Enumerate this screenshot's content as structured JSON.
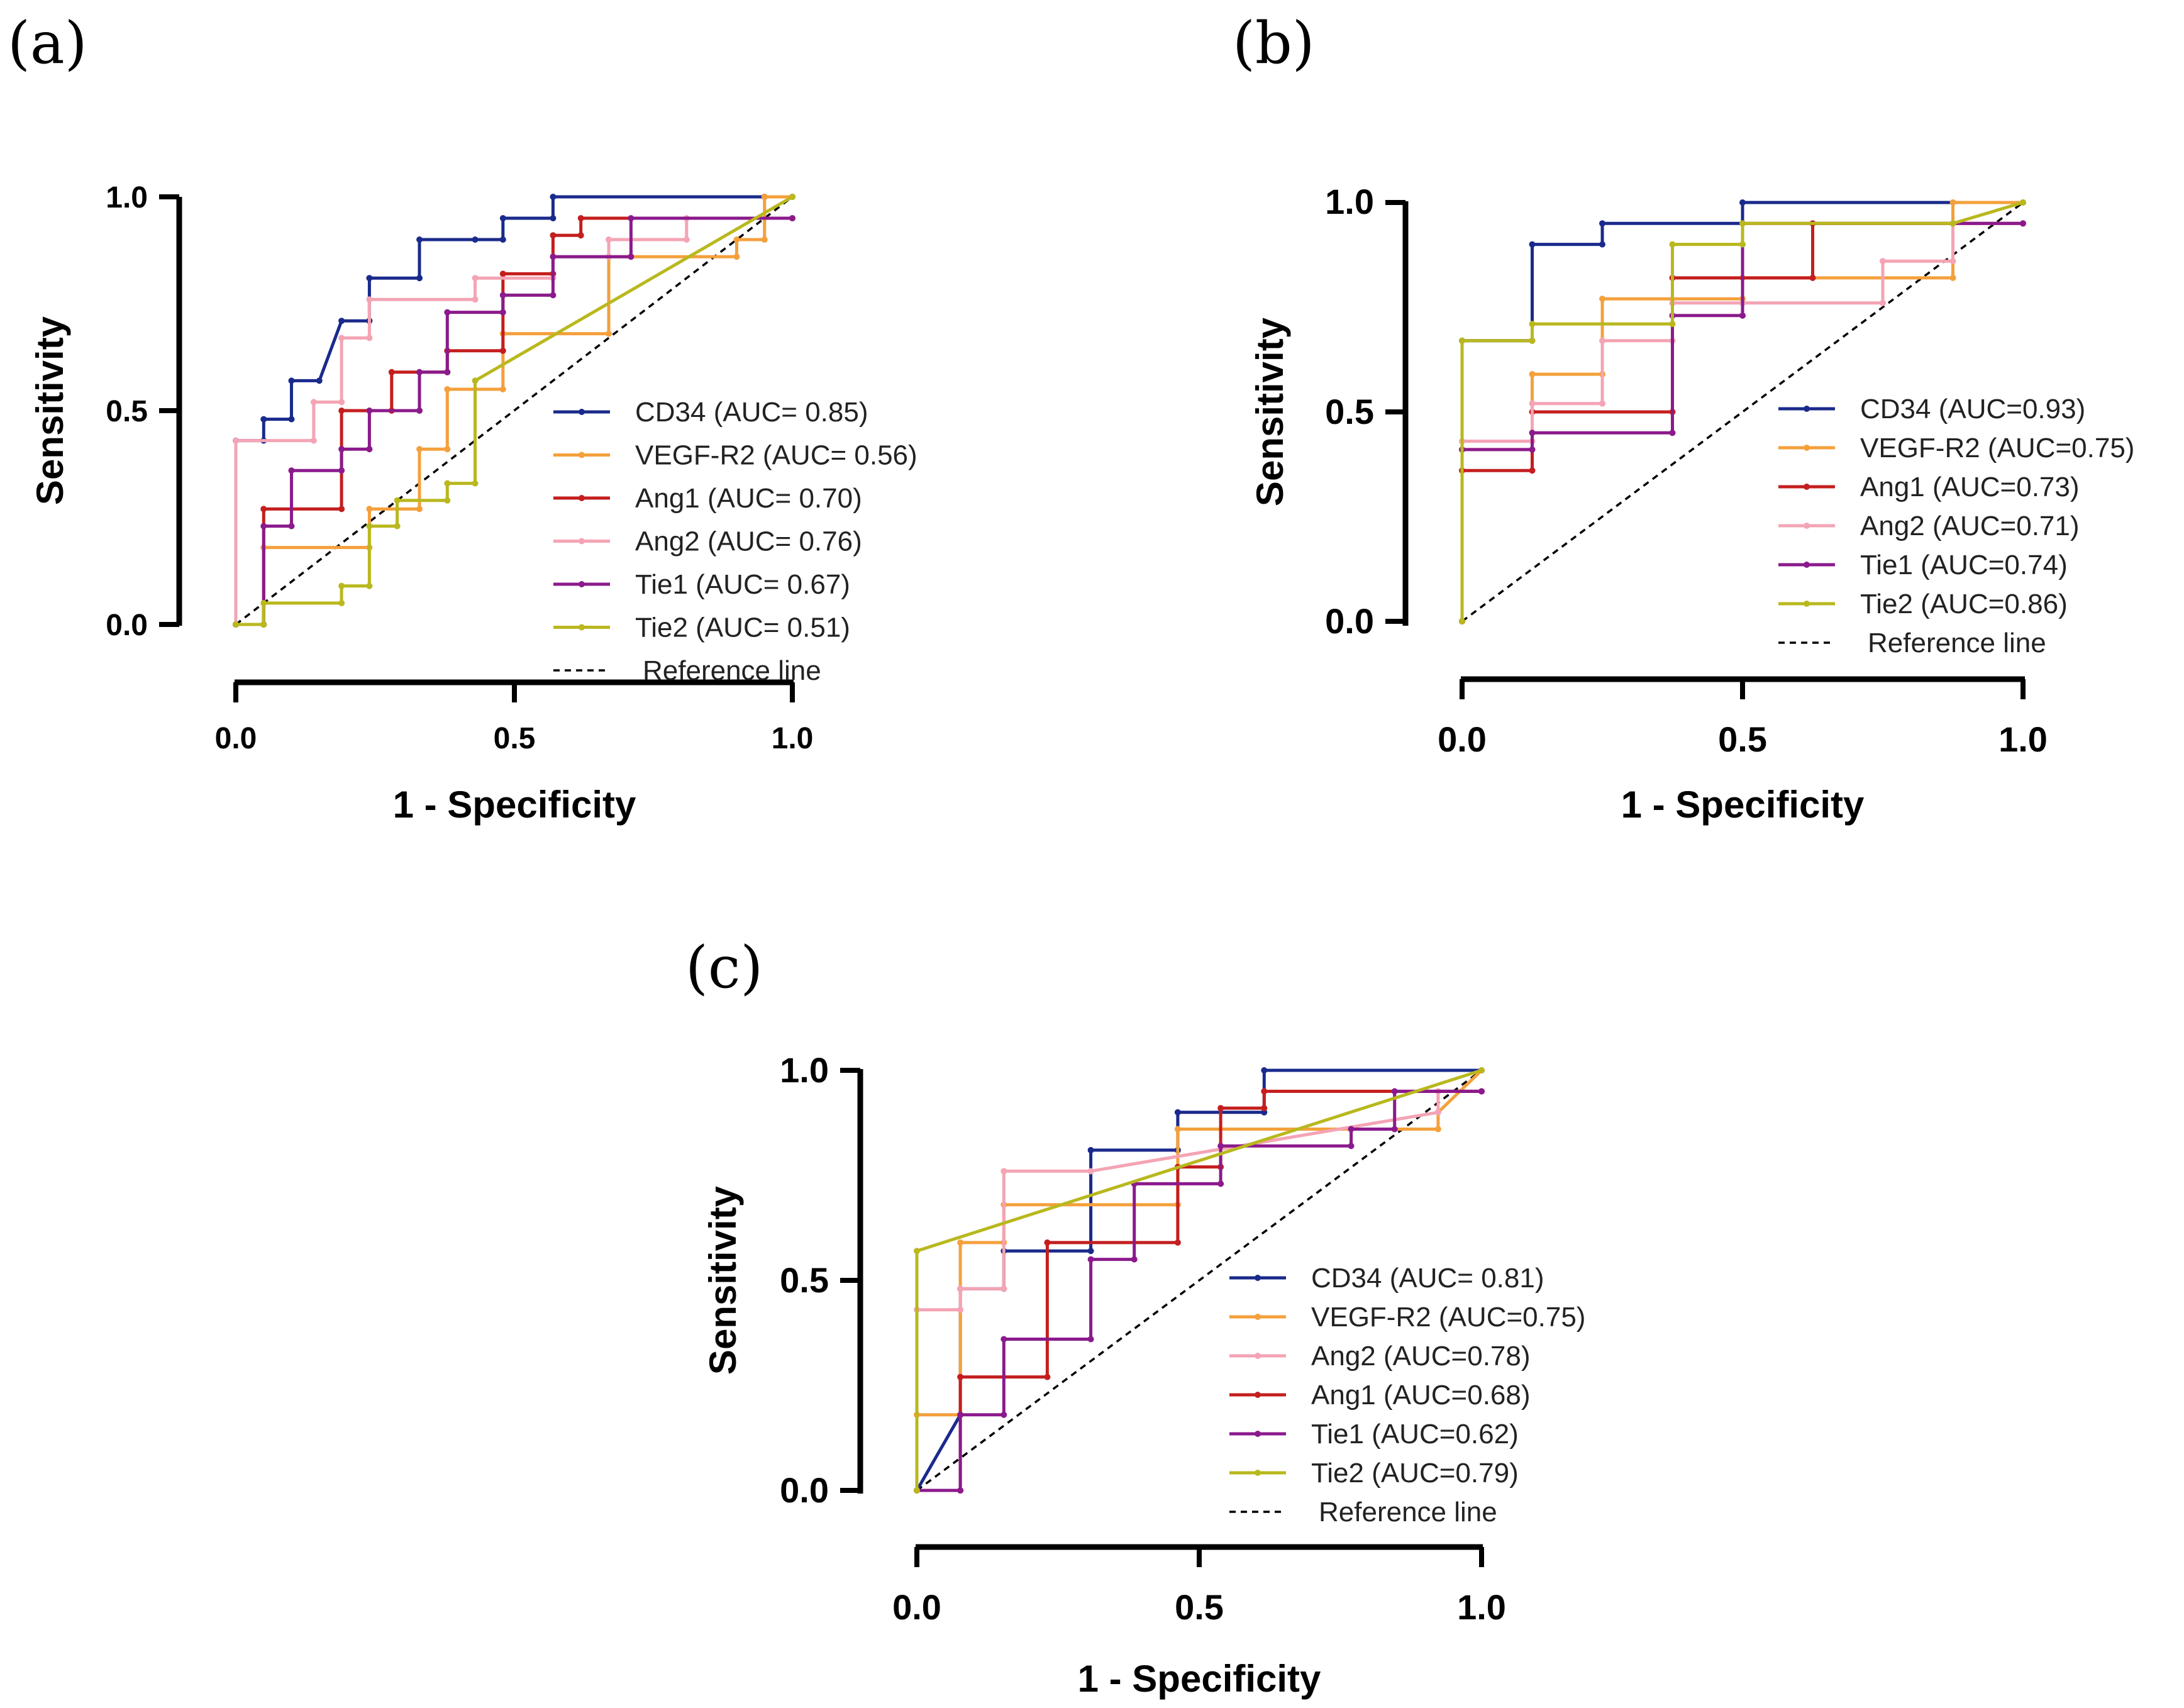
{
  "chart_data": [
    {
      "type": "line",
      "panel_label": "(a)",
      "xlabel": "1 - Specificity",
      "ylabel": "Sensitivity",
      "xlim": [
        0,
        1
      ],
      "ylim": [
        0,
        1
      ],
      "xticks": [
        "0.0",
        "0.5",
        "1.0"
      ],
      "yticks": [
        "0.0",
        "0.5",
        "1.0"
      ],
      "legend_position": "lower-right",
      "reference_label": "Reference line",
      "series": [
        {
          "name": "CD34 (AUC= 0.85)",
          "color": "#1a2a8c",
          "x": [
            0,
            0,
            0.05,
            0.05,
            0.1,
            0.1,
            0.15,
            0.19,
            0.24,
            0.24,
            0.33,
            0.33,
            0.43,
            0.48,
            0.48,
            0.57,
            0.57,
            0.95,
            0.95,
            1
          ],
          "y": [
            0,
            0.43,
            0.43,
            0.48,
            0.48,
            0.57,
            0.57,
            0.71,
            0.71,
            0.81,
            0.81,
            0.9,
            0.9,
            0.9,
            0.95,
            0.95,
            1,
            1,
            1,
            1
          ]
        },
        {
          "name": "VEGF-R2 (AUC= 0.56)",
          "color": "#f4a03c",
          "x": [
            0,
            0.05,
            0.05,
            0.24,
            0.24,
            0.33,
            0.33,
            0.38,
            0.38,
            0.48,
            0.48,
            0.67,
            0.67,
            0.9,
            0.9,
            0.95,
            0.95,
            1
          ],
          "y": [
            0,
            0,
            0.18,
            0.18,
            0.27,
            0.27,
            0.41,
            0.41,
            0.55,
            0.55,
            0.68,
            0.68,
            0.86,
            0.86,
            0.9,
            0.9,
            1,
            1
          ]
        },
        {
          "name": "Ang1  (AUC= 0.70)",
          "color": "#c41e1e",
          "x": [
            0,
            0.05,
            0.05,
            0.19,
            0.19,
            0.28,
            0.28,
            0.38,
            0.38,
            0.48,
            0.48,
            0.57,
            0.57,
            0.62,
            0.62,
            1
          ],
          "y": [
            0,
            0,
            0.27,
            0.27,
            0.5,
            0.5,
            0.59,
            0.59,
            0.64,
            0.64,
            0.82,
            0.82,
            0.91,
            0.91,
            0.95,
            0.95
          ]
        },
        {
          "name": "Ang2 (AUC= 0.76)",
          "color": "#f4a4b4",
          "x": [
            0,
            0,
            0.14,
            0.14,
            0.19,
            0.19,
            0.24,
            0.24,
            0.43,
            0.43,
            0.57,
            0.57,
            0.67,
            0.67,
            0.81,
            0.81,
            1
          ],
          "y": [
            0,
            0.43,
            0.43,
            0.52,
            0.52,
            0.67,
            0.67,
            0.76,
            0.76,
            0.81,
            0.81,
            0.86,
            0.86,
            0.9,
            0.9,
            0.95,
            0.95
          ]
        },
        {
          "name": "Tie1 (AUC= 0.67)",
          "color": "#8b1a8c",
          "x": [
            0,
            0.05,
            0.05,
            0.1,
            0.1,
            0.19,
            0.19,
            0.24,
            0.24,
            0.33,
            0.33,
            0.38,
            0.38,
            0.48,
            0.48,
            0.57,
            0.57,
            0.71,
            0.71,
            1
          ],
          "y": [
            0,
            0,
            0.23,
            0.23,
            0.36,
            0.36,
            0.41,
            0.41,
            0.5,
            0.5,
            0.59,
            0.59,
            0.73,
            0.73,
            0.77,
            0.77,
            0.86,
            0.86,
            0.95,
            0.95
          ]
        },
        {
          "name": "Tie2 (AUC= 0.51)",
          "color": "#b9b81e",
          "x": [
            0,
            0.05,
            0.05,
            0.19,
            0.19,
            0.24,
            0.24,
            0.29,
            0.29,
            0.38,
            0.38,
            0.43,
            0.43,
            1
          ],
          "y": [
            0,
            0,
            0.05,
            0.05,
            0.09,
            0.09,
            0.23,
            0.23,
            0.29,
            0.29,
            0.33,
            0.33,
            0.57,
            1
          ]
        }
      ]
    },
    {
      "type": "line",
      "panel_label": "(b)",
      "xlabel": "1 - Specificity",
      "ylabel": "Sensitivity",
      "xlim": [
        0,
        1
      ],
      "ylim": [
        0,
        1
      ],
      "xticks": [
        "0.0",
        "0.5",
        "1.0"
      ],
      "yticks": [
        "0.0",
        "0.5",
        "1.0"
      ],
      "legend_position": "lower-right",
      "reference_label": "Reference line",
      "series": [
        {
          "name": "CD34 (AUC=0.93)",
          "color": "#1a2a8c",
          "x": [
            0,
            0,
            0.125,
            0.125,
            0.25,
            0.25,
            0.5,
            0.5,
            1
          ],
          "y": [
            0,
            0.67,
            0.67,
            0.9,
            0.9,
            0.95,
            0.95,
            1,
            1
          ]
        },
        {
          "name": "VEGF-R2 (AUC=0.75)",
          "color": "#f4a03c",
          "x": [
            0,
            0,
            0.125,
            0.125,
            0.25,
            0.25,
            0.5,
            0.5,
            0.875,
            0.875,
            1
          ],
          "y": [
            0,
            0.41,
            0.41,
            0.59,
            0.59,
            0.77,
            0.77,
            0.82,
            0.82,
            1,
            1
          ]
        },
        {
          "name": "Ang1 (AUC=0.73)",
          "color": "#c41e1e",
          "x": [
            0,
            0,
            0.125,
            0.125,
            0.375,
            0.375,
            0.625,
            0.625,
            1
          ],
          "y": [
            0,
            0.36,
            0.36,
            0.5,
            0.5,
            0.82,
            0.82,
            0.95,
            0.95
          ]
        },
        {
          "name": "Ang2 (AUC=0.71)",
          "color": "#f4a4b4",
          "x": [
            0,
            0,
            0.125,
            0.125,
            0.25,
            0.25,
            0.375,
            0.375,
            0.5,
            0.5,
            0.75,
            0.75,
            0.875,
            0.875,
            1
          ],
          "y": [
            0,
            0.43,
            0.43,
            0.52,
            0.52,
            0.67,
            0.67,
            0.76,
            0.76,
            0.76,
            0.76,
            0.86,
            0.86,
            0.95,
            0.95
          ]
        },
        {
          "name": "Tie1 (AUC=0.74)",
          "color": "#8b1a8c",
          "x": [
            0,
            0,
            0.125,
            0.125,
            0.375,
            0.375,
            0.5,
            0.5,
            1
          ],
          "y": [
            0,
            0.41,
            0.41,
            0.45,
            0.45,
            0.73,
            0.73,
            0.95,
            0.95
          ]
        },
        {
          "name": "Tie2 (AUC=0.86)",
          "color": "#b9b81e",
          "x": [
            0,
            0,
            0.125,
            0.125,
            0.375,
            0.375,
            0.5,
            0.5,
            0.875,
            0.875,
            1
          ],
          "y": [
            0,
            0.67,
            0.67,
            0.71,
            0.71,
            0.9,
            0.9,
            0.95,
            0.95,
            0.95,
            1
          ]
        }
      ]
    },
    {
      "type": "line",
      "panel_label": "(c)",
      "xlabel": "1 - Specificity",
      "ylabel": "Sensitivity",
      "xlim": [
        0,
        1
      ],
      "ylim": [
        0,
        1
      ],
      "xticks": [
        "0.0",
        "0.5",
        "1.0"
      ],
      "yticks": [
        "0.0",
        "0.5",
        "1.0"
      ],
      "legend_position": "lower-right",
      "reference_label": "Reference line",
      "series": [
        {
          "name": "CD34 (AUC= 0.81)",
          "color": "#1a2a8c",
          "x": [
            0,
            0.077,
            0.077,
            0.154,
            0.154,
            0.308,
            0.308,
            0.462,
            0.462,
            0.615,
            0.615,
            1
          ],
          "y": [
            0,
            0.18,
            0.48,
            0.48,
            0.57,
            0.57,
            0.81,
            0.81,
            0.9,
            0.9,
            1,
            1
          ]
        },
        {
          "name": "VEGF-R2 (AUC=0.75)",
          "color": "#f4a03c",
          "x": [
            0,
            0,
            0.077,
            0.077,
            0.154,
            0.154,
            0.462,
            0.462,
            0.923,
            0.923,
            1
          ],
          "y": [
            0,
            0.18,
            0.18,
            0.59,
            0.59,
            0.68,
            0.68,
            0.86,
            0.86,
            0.9,
            1
          ]
        },
        {
          "name": "Ang2 (AUC=0.78)",
          "color": "#f4a4b4",
          "x": [
            0,
            0,
            0.077,
            0.077,
            0.154,
            0.154,
            0.308,
            0.308,
            0.923,
            0.923,
            1
          ],
          "y": [
            0,
            0.43,
            0.43,
            0.48,
            0.48,
            0.76,
            0.76,
            0.76,
            0.9,
            0.95,
            0.95
          ]
        },
        {
          "name": "Ang1 (AUC=0.68)",
          "color": "#c41e1e",
          "x": [
            0,
            0.077,
            0.077,
            0.231,
            0.231,
            0.462,
            0.462,
            0.538,
            0.538,
            0.615,
            0.615,
            1
          ],
          "y": [
            0,
            0,
            0.27,
            0.27,
            0.59,
            0.59,
            0.77,
            0.77,
            0.91,
            0.91,
            0.95,
            0.95
          ]
        },
        {
          "name": "Tie1 (AUC=0.62)",
          "color": "#8b1a8c",
          "x": [
            0,
            0.077,
            0.077,
            0.154,
            0.154,
            0.308,
            0.308,
            0.385,
            0.385,
            0.538,
            0.538,
            0.769,
            0.769,
            0.846,
            0.846,
            1
          ],
          "y": [
            0,
            0,
            0.18,
            0.18,
            0.36,
            0.36,
            0.55,
            0.55,
            0.73,
            0.73,
            0.82,
            0.82,
            0.86,
            0.86,
            0.95,
            0.95
          ]
        },
        {
          "name": "Tie2 (AUC=0.79)",
          "color": "#b9b81e",
          "x": [
            0,
            0,
            1
          ],
          "y": [
            0,
            0.57,
            1
          ]
        }
      ]
    }
  ]
}
